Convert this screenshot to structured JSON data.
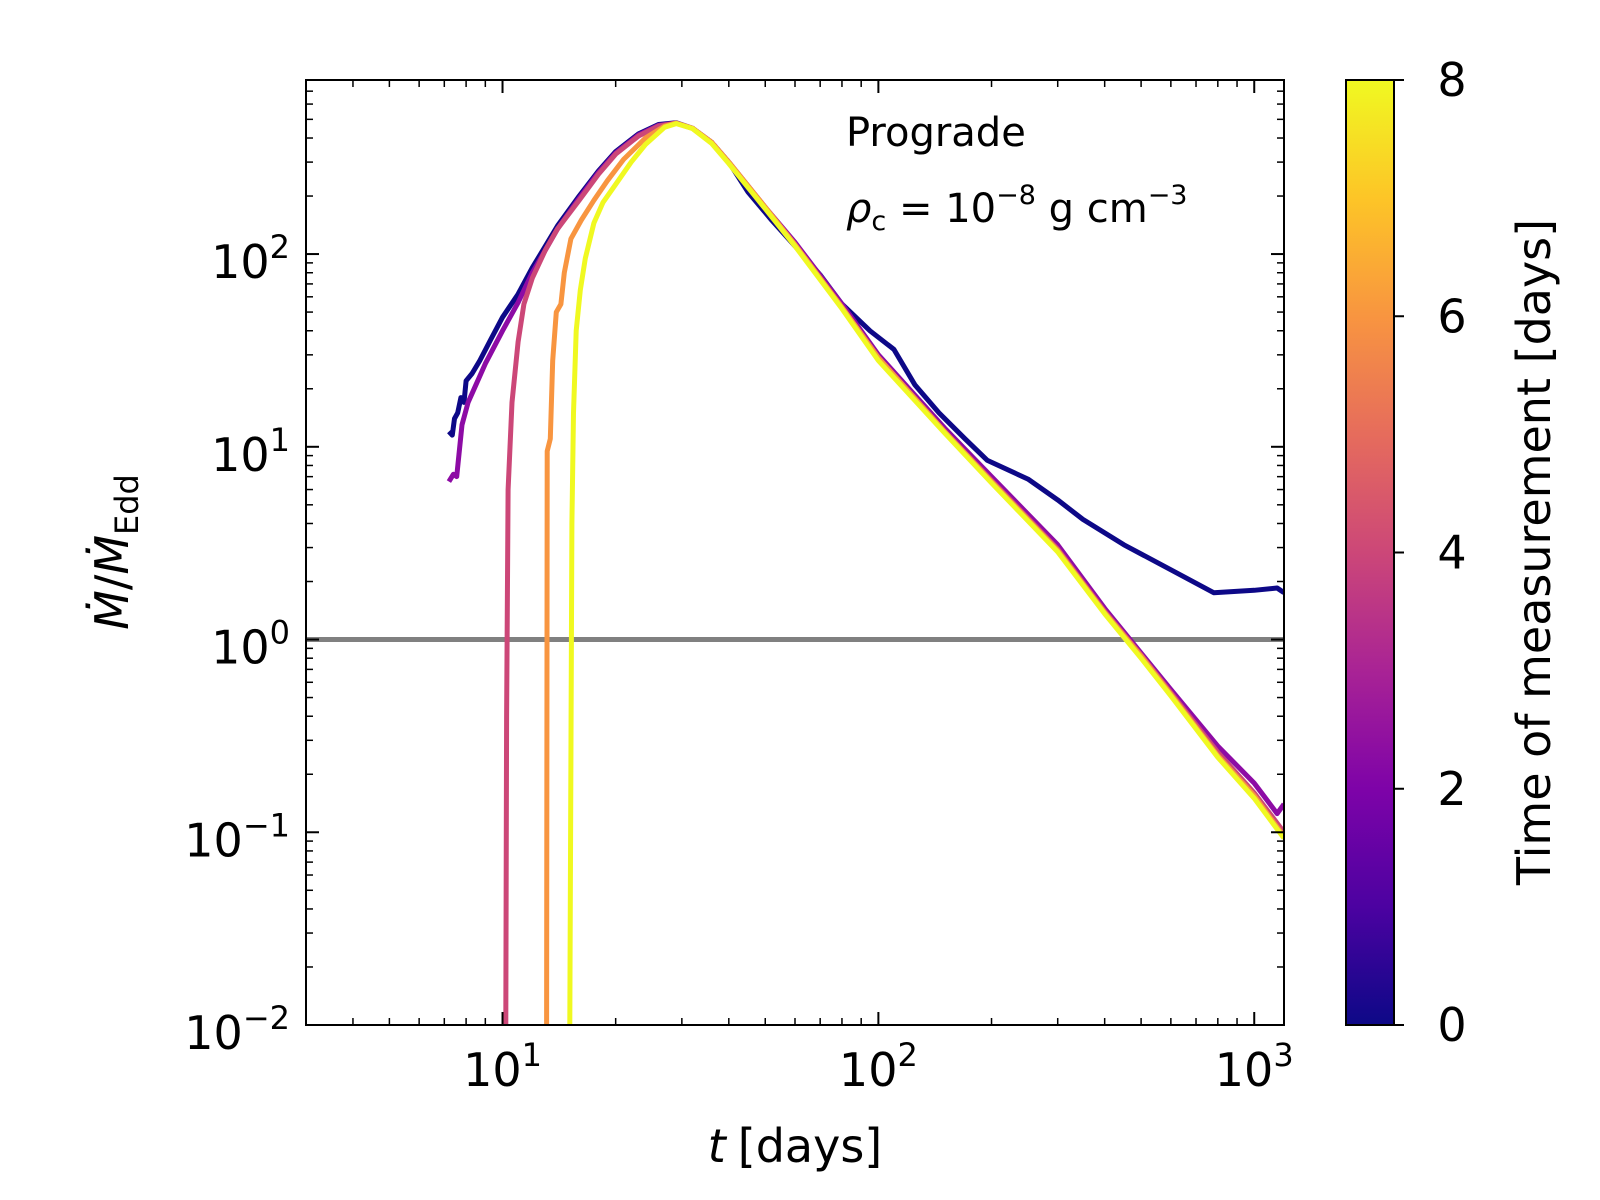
{
  "chart_data": {
    "type": "line",
    "xscale": "log",
    "yscale": "log",
    "xlim": [
      3,
      1200
    ],
    "ylim": [
      0.01,
      800
    ],
    "xlabel": {
      "var": "t",
      "unit": "[days]"
    },
    "ylabel": {
      "num": "Ṁ",
      "den": "Ṁ",
      "den_sub": "Edd"
    },
    "x_ticks": [
      {
        "value": 10,
        "base": "10",
        "exp": "1"
      },
      {
        "value": 100,
        "base": "10",
        "exp": "2"
      },
      {
        "value": 1000,
        "base": "10",
        "exp": "3"
      }
    ],
    "y_ticks": [
      {
        "value": 0.01,
        "base": "10",
        "exp": "−2"
      },
      {
        "value": 0.1,
        "base": "10",
        "exp": "−1"
      },
      {
        "value": 1,
        "base": "10",
        "exp": "0"
      },
      {
        "value": 10,
        "base": "10",
        "exp": "1"
      },
      {
        "value": 100,
        "base": "10",
        "exp": "2"
      }
    ],
    "annotations": {
      "line1": "Prograde",
      "rho_symbol": "ρ",
      "rho_sub": "c",
      "rho_rest": " = 10",
      "rho_exp": "−8",
      "rho_unit": " g cm",
      "rho_unit_exp": "−3"
    },
    "reference_line": {
      "y": 1,
      "color": "#808080"
    },
    "colorbar": {
      "label": "Time of measurement [days]",
      "range": [
        0,
        8
      ],
      "ticks": [
        "0",
        "2",
        "4",
        "6",
        "8"
      ],
      "colormap": "plasma"
    },
    "series": [
      {
        "name": "t_meas = 0",
        "color": "#0d0887",
        "points": [
          [
            7.2,
            12
          ],
          [
            7.35,
            11.5
          ],
          [
            7.45,
            14
          ],
          [
            7.6,
            15
          ],
          [
            7.75,
            18
          ],
          [
            7.9,
            17
          ],
          [
            8.0,
            22
          ],
          [
            8.3,
            24
          ],
          [
            8.7,
            28
          ],
          [
            9.3,
            36
          ],
          [
            10,
            47
          ],
          [
            11,
            62
          ],
          [
            12,
            85
          ],
          [
            13,
            110
          ],
          [
            14,
            140
          ],
          [
            16,
            200
          ],
          [
            18,
            270
          ],
          [
            20,
            340
          ],
          [
            23,
            420
          ],
          [
            26,
            470
          ],
          [
            29,
            480
          ],
          [
            32,
            450
          ],
          [
            36,
            380
          ],
          [
            40,
            300
          ],
          [
            45,
            210
          ],
          [
            52,
            150
          ],
          [
            60,
            110
          ],
          [
            70,
            78
          ],
          [
            80,
            55
          ],
          [
            95,
            40
          ],
          [
            110,
            32
          ],
          [
            125,
            21
          ],
          [
            145,
            15
          ],
          [
            170,
            11
          ],
          [
            195,
            8.5
          ],
          [
            250,
            6.8
          ],
          [
            300,
            5.3
          ],
          [
            350,
            4.2
          ],
          [
            450,
            3.1
          ],
          [
            600,
            2.3
          ],
          [
            780,
            1.75
          ],
          [
            1000,
            1.8
          ],
          [
            1150,
            1.85
          ],
          [
            1200,
            1.75
          ]
        ]
      },
      {
        "name": "t_meas = 2",
        "color": "#8d0ba5",
        "points": [
          [
            7.2,
            6.6
          ],
          [
            7.4,
            7.2
          ],
          [
            7.55,
            7.0
          ],
          [
            7.8,
            13
          ],
          [
            8.1,
            17
          ],
          [
            8.5,
            21
          ],
          [
            9,
            27
          ],
          [
            10,
            40
          ],
          [
            11,
            56
          ],
          [
            12,
            80
          ],
          [
            13,
            105
          ],
          [
            14,
            135
          ],
          [
            16,
            195
          ],
          [
            18,
            265
          ],
          [
            20,
            335
          ],
          [
            23,
            415
          ],
          [
            26,
            465
          ],
          [
            29,
            478
          ],
          [
            32,
            450
          ],
          [
            36,
            380
          ],
          [
            40,
            300
          ],
          [
            50,
            175
          ],
          [
            60,
            115
          ],
          [
            80,
            55
          ],
          [
            100,
            30
          ],
          [
            150,
            12.5
          ],
          [
            200,
            7
          ],
          [
            300,
            3.1
          ],
          [
            400,
            1.45
          ],
          [
            500,
            0.85
          ],
          [
            600,
            0.55
          ],
          [
            800,
            0.28
          ],
          [
            1000,
            0.18
          ],
          [
            1150,
            0.125
          ],
          [
            1200,
            0.14
          ]
        ]
      },
      {
        "name": "t_meas = 4",
        "color": "#cc4778",
        "points": [
          [
            10.2,
            0.01
          ],
          [
            10.25,
            0.4
          ],
          [
            10.35,
            6
          ],
          [
            10.6,
            17
          ],
          [
            11,
            35
          ],
          [
            11.4,
            55
          ],
          [
            12,
            75
          ],
          [
            13,
            105
          ],
          [
            14,
            135
          ],
          [
            16,
            190
          ],
          [
            18,
            260
          ],
          [
            20,
            330
          ],
          [
            23,
            410
          ],
          [
            26,
            462
          ],
          [
            29,
            478
          ],
          [
            32,
            450
          ],
          [
            36,
            380
          ],
          [
            40,
            300
          ],
          [
            50,
            175
          ],
          [
            60,
            112
          ],
          [
            80,
            53
          ],
          [
            100,
            29
          ],
          [
            150,
            12
          ],
          [
            200,
            6.7
          ],
          [
            300,
            2.95
          ],
          [
            400,
            1.4
          ],
          [
            500,
            0.83
          ],
          [
            600,
            0.53
          ],
          [
            800,
            0.26
          ],
          [
            1000,
            0.16
          ],
          [
            1200,
            0.1
          ]
        ]
      },
      {
        "name": "t_meas = 6",
        "color": "#f89540",
        "points": [
          [
            13.1,
            0.01
          ],
          [
            13.15,
            9.5
          ],
          [
            13.4,
            11
          ],
          [
            13.6,
            28
          ],
          [
            13.9,
            50
          ],
          [
            14.3,
            55
          ],
          [
            14.6,
            80
          ],
          [
            15.2,
            120
          ],
          [
            16.2,
            150
          ],
          [
            17.5,
            190
          ],
          [
            19,
            240
          ],
          [
            21,
            310
          ],
          [
            24,
            400
          ],
          [
            27,
            462
          ],
          [
            29,
            478
          ],
          [
            32,
            450
          ],
          [
            36,
            380
          ],
          [
            40,
            300
          ],
          [
            50,
            175
          ],
          [
            60,
            112
          ],
          [
            80,
            53
          ],
          [
            100,
            29
          ],
          [
            150,
            12
          ],
          [
            200,
            6.6
          ],
          [
            300,
            2.9
          ],
          [
            400,
            1.38
          ],
          [
            500,
            0.82
          ],
          [
            600,
            0.52
          ],
          [
            800,
            0.25
          ],
          [
            1000,
            0.155
          ],
          [
            1200,
            0.095
          ]
        ]
      },
      {
        "name": "t_meas = 8",
        "color": "#f0f921",
        "points": [
          [
            15.1,
            0.01
          ],
          [
            15.3,
            4
          ],
          [
            15.45,
            15
          ],
          [
            15.7,
            40
          ],
          [
            16.1,
            65
          ],
          [
            16.6,
            95
          ],
          [
            17.5,
            145
          ],
          [
            18.5,
            185
          ],
          [
            20,
            230
          ],
          [
            22,
            300
          ],
          [
            24,
            370
          ],
          [
            27,
            455
          ],
          [
            29,
            475
          ],
          [
            32,
            448
          ],
          [
            36,
            375
          ],
          [
            40,
            295
          ],
          [
            50,
            172
          ],
          [
            60,
            110
          ],
          [
            80,
            52
          ],
          [
            100,
            28
          ],
          [
            150,
            11.8
          ],
          [
            200,
            6.5
          ],
          [
            300,
            2.85
          ],
          [
            400,
            1.36
          ],
          [
            500,
            0.8
          ],
          [
            600,
            0.51
          ],
          [
            800,
            0.245
          ],
          [
            1000,
            0.15
          ],
          [
            1200,
            0.093
          ]
        ]
      }
    ]
  }
}
